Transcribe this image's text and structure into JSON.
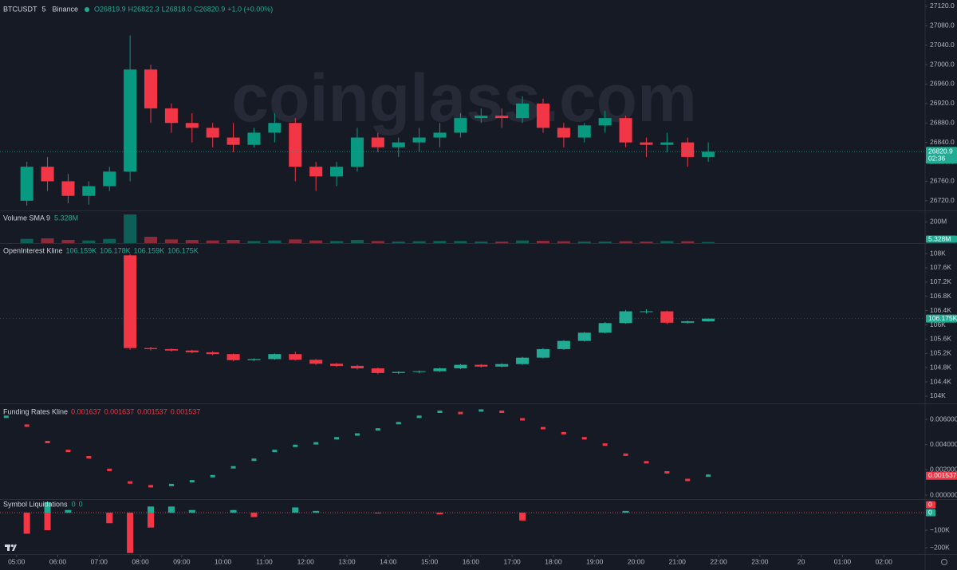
{
  "chart_data": [
    {
      "type": "candlestick",
      "symbol": "BTCUSDT",
      "interval": "5",
      "exchange": "Binance",
      "ohlc_labels": [
        "O26819.9",
        "H26822.3",
        "L26818.0",
        "C26820.9",
        "+1.0 (+0.00%)"
      ],
      "watermark": "coinglass.com",
      "x": [
        5.25,
        5.75,
        6.25,
        6.75,
        7.25,
        7.75,
        8.25,
        8.75,
        9.25,
        9.75,
        10.25,
        10.75,
        11.25,
        11.75,
        12.25,
        12.75,
        13.25,
        13.75,
        14.25,
        14.75,
        15.25,
        15.75,
        16.25,
        16.75,
        17.25,
        17.75,
        18.25,
        18.75,
        19.25,
        19.75,
        20.25,
        20.75,
        21.25,
        21.75
      ],
      "open": [
        26720,
        26790,
        26760,
        26730,
        26750,
        26780,
        26990,
        26910,
        26880,
        26870,
        26850,
        26835,
        26860,
        26880,
        26790,
        26770,
        26790,
        26850,
        26830,
        26840,
        26850,
        26860,
        26890,
        26895,
        26890,
        26920,
        26870,
        26850,
        26875,
        26890,
        26840,
        26835,
        26840,
        26810
      ],
      "high": [
        26800,
        26810,
        26775,
        26760,
        26790,
        27060,
        27000,
        26920,
        26900,
        26880,
        26880,
        26870,
        26900,
        26890,
        26800,
        26800,
        26870,
        26860,
        26850,
        26870,
        26880,
        26900,
        26910,
        26910,
        26935,
        26930,
        26880,
        26880,
        26905,
        26895,
        26850,
        26860,
        26850,
        26840
      ],
      "low": [
        26710,
        26740,
        26715,
        26712,
        26740,
        26760,
        26880,
        26860,
        26840,
        26830,
        26820,
        26830,
        26840,
        26760,
        26740,
        26750,
        26780,
        26820,
        26810,
        26820,
        26830,
        26850,
        26880,
        26870,
        26880,
        26860,
        26830,
        26840,
        26860,
        26830,
        26810,
        26820,
        26790,
        26800
      ],
      "close": [
        26790,
        26760,
        26730,
        26750,
        26780,
        26990,
        26910,
        26880,
        26870,
        26850,
        26835,
        26860,
        26880,
        26790,
        26770,
        26790,
        26850,
        26830,
        26840,
        26850,
        26860,
        26890,
        26895,
        26890,
        26920,
        26870,
        26850,
        26875,
        26890,
        26840,
        26835,
        26840,
        26810,
        26820.9
      ],
      "xlim": [
        4.6,
        27.0
      ],
      "ylim": [
        26700,
        27133
      ],
      "yticks": [
        {
          "value": 26720,
          "label": "26720.0"
        },
        {
          "value": 26760,
          "label": "26760.0"
        },
        {
          "value": 26800,
          "label": "26800.0"
        },
        {
          "value": 26840,
          "label": "26840.0"
        },
        {
          "value": 26880,
          "label": "26880.0"
        },
        {
          "value": 26920,
          "label": "26920.0"
        },
        {
          "value": 26960,
          "label": "26960.0"
        },
        {
          "value": 27000,
          "label": "27000.0"
        },
        {
          "value": 27040,
          "label": "27040.0"
        },
        {
          "value": 27080,
          "label": "27080.0"
        },
        {
          "value": 27120,
          "label": "27120.0"
        }
      ],
      "last_label": "26820.9",
      "countdown": "02:36",
      "up_color": "#089981",
      "down_color": "#f23645"
    },
    {
      "type": "bar",
      "title": "Volume SMA 9",
      "legend_values": [
        "5.328M"
      ],
      "x": [
        5.25,
        5.75,
        6.25,
        6.75,
        7.25,
        7.75,
        8.25,
        8.75,
        9.25,
        9.75,
        10.25,
        10.75,
        11.25,
        11.75,
        12.25,
        12.75,
        13.25,
        13.75,
        14.25,
        14.75,
        15.25,
        15.75,
        16.25,
        16.75,
        17.25,
        17.75,
        18.25,
        18.75,
        19.25,
        19.75,
        20.25,
        20.75,
        21.25,
        21.75
      ],
      "values": [
        40000000,
        45000000,
        30000000,
        25000000,
        40000000,
        270000000,
        60000000,
        35000000,
        30000000,
        25000000,
        30000000,
        20000000,
        25000000,
        35000000,
        25000000,
        20000000,
        30000000,
        20000000,
        15000000,
        18000000,
        20000000,
        20000000,
        15000000,
        15000000,
        25000000,
        22000000,
        18000000,
        15000000,
        15000000,
        18000000,
        15000000,
        20000000,
        18000000,
        10000000
      ],
      "sma_value": 5328000,
      "last_label": "5.328M",
      "xlim": [
        4.6,
        27.0
      ],
      "ylim": [
        0,
        300000000
      ],
      "yticks": [
        {
          "value": 200000000,
          "label": "200M"
        }
      ]
    },
    {
      "type": "candlestick",
      "title": "OpenInterest Kline",
      "legend_values": [
        "106.159K",
        "106.178K",
        "106.159K",
        "106.175K"
      ],
      "x": [
        7.75,
        8.25,
        8.75,
        9.25,
        9.75,
        10.25,
        10.75,
        11.25,
        11.75,
        12.25,
        12.75,
        13.25,
        13.75,
        14.25,
        14.75,
        15.25,
        15.75,
        16.25,
        16.75,
        17.25,
        17.75,
        18.25,
        18.75,
        19.25,
        19.75,
        20.25,
        20.75,
        21.25,
        21.75
      ],
      "open": [
        107950,
        105350,
        105320,
        105280,
        105230,
        105180,
        105010,
        105040,
        105180,
        105020,
        104910,
        104850,
        104780,
        104650,
        104680,
        104700,
        104780,
        104880,
        104830,
        104900,
        105080,
        105320,
        105550,
        105780,
        106050,
        106380,
        106380,
        106060,
        106100
      ],
      "high": [
        107980,
        105380,
        105340,
        105300,
        105260,
        105200,
        105060,
        105200,
        105250,
        105040,
        104930,
        104880,
        104800,
        104700,
        104720,
        104800,
        104900,
        104900,
        104920,
        105100,
        105350,
        105570,
        105800,
        106080,
        106420,
        106440,
        106400,
        106120,
        106180
      ],
      "low": [
        105300,
        105280,
        105250,
        105200,
        105150,
        104980,
        104990,
        105020,
        105000,
        104880,
        104820,
        104750,
        104620,
        104620,
        104640,
        104680,
        104760,
        104800,
        104810,
        104880,
        105060,
        105300,
        105530,
        105760,
        106030,
        106320,
        106020,
        106040,
        106090
      ],
      "close": [
        105350,
        105320,
        105280,
        105230,
        105180,
        105010,
        105040,
        105180,
        105020,
        104910,
        104850,
        104780,
        104650,
        104680,
        104700,
        104780,
        104880,
        104830,
        104900,
        105080,
        105320,
        105550,
        105780,
        106050,
        106380,
        106380,
        106060,
        106100,
        106175
      ],
      "last_label": "106.175K",
      "xlim": [
        4.6,
        27.0
      ],
      "ylim": [
        103820,
        108270
      ],
      "yticks": [
        {
          "value": 104000,
          "label": "104K"
        },
        {
          "value": 104400,
          "label": "104.4K"
        },
        {
          "value": 104800,
          "label": "104.8K"
        },
        {
          "value": 105200,
          "label": "105.2K"
        },
        {
          "value": 105600,
          "label": "105.6K"
        },
        {
          "value": 106000,
          "label": "106K"
        },
        {
          "value": 106400,
          "label": "106.4K"
        },
        {
          "value": 106800,
          "label": "106.8K"
        },
        {
          "value": 107200,
          "label": "107.2K"
        },
        {
          "value": 107600,
          "label": "107.6K"
        },
        {
          "value": 108000,
          "label": "108K"
        }
      ],
      "up_color": "#22ab94",
      "down_color": "#f23645"
    },
    {
      "type": "line",
      "title": "Funding Rates Kline",
      "legend_values": [
        "0.001637",
        "0.001637",
        "0.001537",
        "0.001537"
      ],
      "x": [
        4.75,
        5.25,
        5.75,
        6.25,
        6.75,
        7.25,
        7.75,
        8.25,
        8.75,
        9.25,
        9.75,
        10.25,
        10.75,
        11.25,
        11.75,
        12.25,
        12.75,
        13.25,
        13.75,
        14.25,
        14.75,
        15.25,
        15.75,
        16.25,
        16.75,
        17.25,
        17.75,
        18.25,
        18.75,
        19.25,
        19.75,
        20.25,
        20.75,
        21.25,
        21.75
      ],
      "values": [
        0.0062,
        0.0055,
        0.0042,
        0.0035,
        0.003,
        0.002,
        0.001,
        0.0007,
        0.0008,
        0.0011,
        0.0015,
        0.0022,
        0.0028,
        0.0035,
        0.0039,
        0.0041,
        0.0045,
        0.0048,
        0.0052,
        0.0057,
        0.0062,
        0.0066,
        0.0065,
        0.0067,
        0.0066,
        0.006,
        0.0053,
        0.0049,
        0.0045,
        0.004,
        0.0032,
        0.0026,
        0.0018,
        0.0012,
        0.001537
      ],
      "last_label": "0.001537",
      "xlim": [
        4.6,
        27.0
      ],
      "ylim": [
        -0.00025,
        0.0072
      ],
      "yticks": [
        {
          "value": 0,
          "label": "0.000000"
        },
        {
          "value": 0.002,
          "label": "0.002000"
        },
        {
          "value": 0.004,
          "label": "0.004000"
        },
        {
          "value": 0.006,
          "label": "0.006000"
        }
      ],
      "up_color": "#22ab94",
      "down_color": "#f23645"
    },
    {
      "type": "bar",
      "title": "Symbol Liquidations",
      "legend_values": [
        "0",
        "0"
      ],
      "x": [
        5.25,
        5.75,
        6.25,
        6.75,
        7.25,
        7.75,
        8.25,
        8.75,
        9.25,
        9.75,
        10.25,
        10.75,
        11.25,
        11.75,
        12.25,
        12.75,
        13.25,
        13.75,
        14.25,
        14.75,
        15.25,
        15.75,
        16.25,
        16.75,
        17.25,
        17.75,
        18.25,
        18.75,
        19.25,
        19.75,
        20.25,
        20.75,
        21.25,
        21.75
      ],
      "series": [
        {
          "color": "#f23645",
          "values": [
            -120000,
            -100000,
            0,
            0,
            -60000,
            -230000,
            -85000,
            0,
            0,
            0,
            0,
            -25000,
            0,
            0,
            0,
            0,
            0,
            -5000,
            0,
            0,
            -10000,
            0,
            0,
            0,
            -45000,
            0,
            0,
            0,
            0,
            0,
            0,
            0,
            0,
            0
          ]
        },
        {
          "color": "#22ab94",
          "values": [
            0,
            60000,
            15000,
            0,
            0,
            0,
            35000,
            35000,
            15000,
            0,
            15000,
            0,
            0,
            30000,
            10000,
            0,
            0,
            0,
            0,
            0,
            0,
            0,
            0,
            0,
            0,
            0,
            0,
            0,
            0,
            10000,
            0,
            0,
            0,
            0
          ]
        }
      ],
      "last_labels": [
        "0",
        "0"
      ],
      "xlim": [
        4.6,
        27.0
      ],
      "ylim": [
        -236000,
        73000
      ],
      "yticks": [
        {
          "value": -200000,
          "label": "−200K"
        },
        {
          "value": -100000,
          "label": "−100K"
        }
      ],
      "xticks": [
        {
          "value": 5,
          "label": "05:00"
        },
        {
          "value": 6,
          "label": "06:00"
        },
        {
          "value": 7,
          "label": "07:00"
        },
        {
          "value": 8,
          "label": "08:00"
        },
        {
          "value": 9,
          "label": "09:00"
        },
        {
          "value": 10,
          "label": "10:00"
        },
        {
          "value": 11,
          "label": "11:00"
        },
        {
          "value": 12,
          "label": "12:00"
        },
        {
          "value": 13,
          "label": "13:00"
        },
        {
          "value": 14,
          "label": "14:00"
        },
        {
          "value": 15,
          "label": "15:00"
        },
        {
          "value": 16,
          "label": "16:00"
        },
        {
          "value": 17,
          "label": "17:00"
        },
        {
          "value": 18,
          "label": "18:00"
        },
        {
          "value": 19,
          "label": "19:00"
        },
        {
          "value": 20,
          "label": "20:00"
        },
        {
          "value": 21,
          "label": "21:00"
        },
        {
          "value": 22,
          "label": "22:00"
        },
        {
          "value": 23,
          "label": "23:00"
        },
        {
          "value": 24,
          "label": "20"
        },
        {
          "value": 25,
          "label": "01:00"
        },
        {
          "value": 26,
          "label": "02:00"
        }
      ]
    }
  ]
}
